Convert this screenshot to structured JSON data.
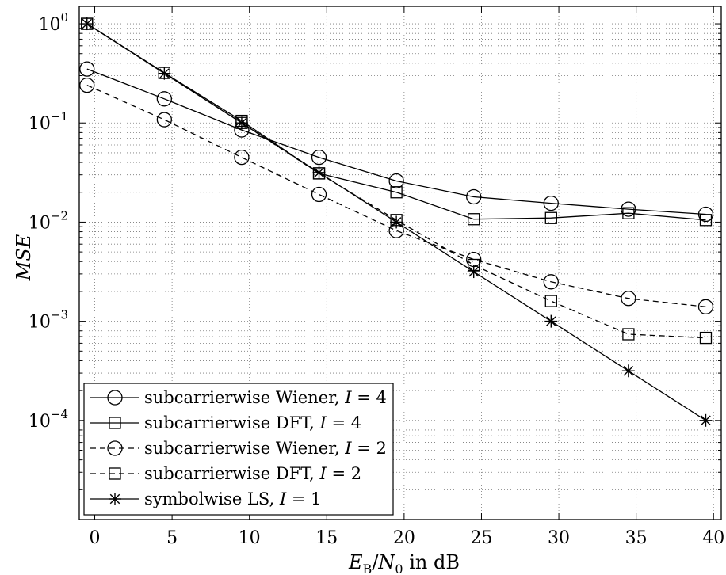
{
  "chart_data": {
    "type": "line",
    "xlabel": "E_B/N_0 in dB",
    "ylabel": "MSE",
    "xlim": [
      -1,
      40.5
    ],
    "ylim": [
      1e-05,
      1.5
    ],
    "yscale": "log",
    "grid": true,
    "legend_position": "bottom-left",
    "x_ticks": [
      0,
      5,
      10,
      15,
      20,
      25,
      30,
      35,
      40
    ],
    "x_tick_labels": [
      "0",
      "5",
      "10",
      "15",
      "20",
      "25",
      "30",
      "35",
      "40"
    ],
    "y_ticks": [
      0.0001,
      0.001,
      0.01,
      0.1,
      1
    ],
    "y_tick_labels": [
      {
        "base": "10",
        "exp": "−4"
      },
      {
        "base": "10",
        "exp": "−3"
      },
      {
        "base": "10",
        "exp": "−2"
      },
      {
        "base": "10",
        "exp": "−1"
      },
      {
        "base": "10",
        "exp": "0"
      }
    ],
    "series": [
      {
        "name": "subcarrierwise Wiener, I = 4",
        "marker": "circle",
        "dash": "solid",
        "x": [
          -0.5,
          4.5,
          9.5,
          14.5,
          19.5,
          24.5,
          29.5,
          34.5,
          39.5
        ],
        "y": [
          0.35,
          0.175,
          0.085,
          0.045,
          0.026,
          0.018,
          0.0155,
          0.0135,
          0.012
        ]
      },
      {
        "name": "subcarrierwise DFT, I = 4",
        "marker": "square",
        "dash": "solid",
        "x": [
          -0.5,
          4.5,
          9.5,
          14.5,
          19.5,
          24.5,
          29.5,
          34.5,
          39.5
        ],
        "y": [
          1.0,
          0.32,
          0.105,
          0.031,
          0.02,
          0.0107,
          0.011,
          0.0123,
          0.0105
        ]
      },
      {
        "name": "subcarrierwise Wiener, I = 2",
        "marker": "circle",
        "dash": "dashed",
        "x": [
          -0.5,
          4.5,
          9.5,
          14.5,
          19.5,
          24.5,
          29.5,
          34.5,
          39.5
        ],
        "y": [
          0.24,
          0.108,
          0.045,
          0.019,
          0.0082,
          0.0042,
          0.0025,
          0.0017,
          0.0014
        ]
      },
      {
        "name": "subcarrierwise DFT, I = 2",
        "marker": "square",
        "dash": "dashed",
        "x": [
          -0.5,
          4.5,
          9.5,
          14.5,
          19.5,
          24.5,
          29.5,
          34.5,
          39.5
        ],
        "y": [
          1.0,
          0.32,
          0.1,
          0.031,
          0.0105,
          0.0037,
          0.0016,
          0.00074,
          0.00068
        ]
      },
      {
        "name": "symbolwise LS, I = 1",
        "marker": "star",
        "dash": "solid",
        "x": [
          -0.5,
          4.5,
          9.5,
          14.5,
          19.5,
          24.5,
          29.5,
          34.5,
          39.5
        ],
        "y": [
          1.0,
          0.316,
          0.1,
          0.0316,
          0.01,
          0.00316,
          0.001,
          0.000316,
          0.0001
        ]
      }
    ],
    "legend": [
      {
        "prefix": "subcarrierwise Wiener, ",
        "var": "I",
        "suffix": " = 4"
      },
      {
        "prefix": "subcarrierwise DFT, ",
        "var": "I",
        "suffix": " = 4"
      },
      {
        "prefix": "subcarrierwise Wiener, ",
        "var": "I",
        "suffix": " = 2"
      },
      {
        "prefix": "subcarrierwise DFT, ",
        "var": "I",
        "suffix": " = 2"
      },
      {
        "prefix": "symbolwise LS, ",
        "var": "I",
        "suffix": " = 1"
      }
    ],
    "axis_text": {
      "x": {
        "main": "E",
        "sub": "B",
        "slash": "/",
        "main2": "N",
        "sub2": "0",
        "rest": " in dB"
      },
      "y": "MSE"
    }
  }
}
